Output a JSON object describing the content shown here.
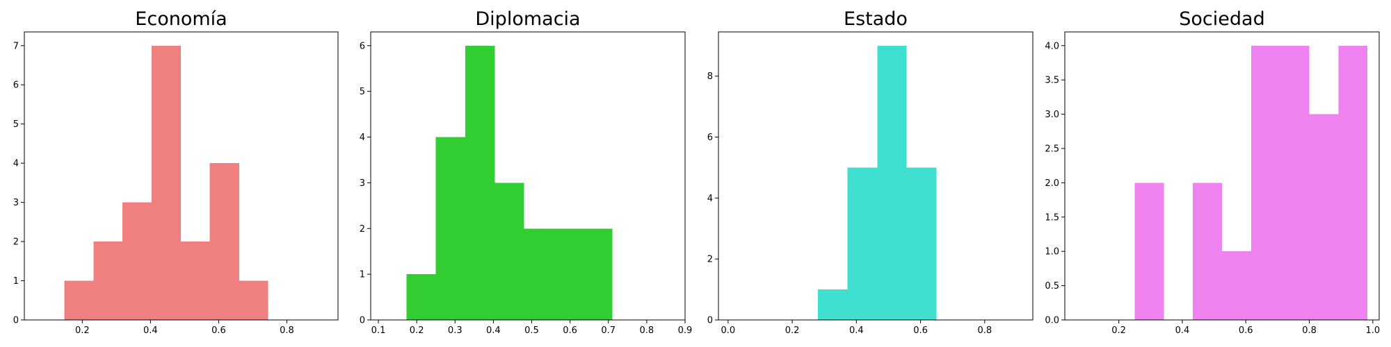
{
  "chart_data": [
    {
      "type": "bar",
      "title": "Economía",
      "color": "#f08080",
      "xlim": [
        0.03,
        0.95
      ],
      "ylim": [
        0,
        7.35
      ],
      "xticks": [
        0.2,
        0.4,
        0.6,
        0.8
      ],
      "xtick_labels": [
        "0.2",
        "0.4",
        "0.6",
        "0.8"
      ],
      "yticks": [
        0,
        1,
        2,
        3,
        4,
        5,
        6,
        7
      ],
      "ytick_labels": [
        "0",
        "1",
        "2",
        "3",
        "4",
        "5",
        "6",
        "7"
      ],
      "bins": [
        [
          0.147,
          0.233
        ],
        [
          0.233,
          0.318
        ],
        [
          0.318,
          0.403
        ],
        [
          0.403,
          0.489
        ],
        [
          0.489,
          0.574
        ],
        [
          0.574,
          0.66
        ],
        [
          0.66,
          0.745
        ]
      ],
      "values": [
        1,
        2,
        3,
        7,
        2,
        4,
        1
      ]
    },
    {
      "type": "bar",
      "title": "Diplomacia",
      "color": "#32cd32",
      "xlim": [
        0.08,
        0.9
      ],
      "ylim": [
        0,
        6.3
      ],
      "xticks": [
        0.1,
        0.2,
        0.3,
        0.4,
        0.5,
        0.6,
        0.7,
        0.8,
        0.9
      ],
      "xtick_labels": [
        "0.1",
        "0.2",
        "0.3",
        "0.4",
        "0.5",
        "0.6",
        "0.7",
        "0.8",
        "0.9"
      ],
      "yticks": [
        0,
        1,
        2,
        3,
        4,
        5,
        6
      ],
      "ytick_labels": [
        "0",
        "1",
        "2",
        "3",
        "4",
        "5",
        "6"
      ],
      "bins": [
        [
          0.173,
          0.25
        ],
        [
          0.25,
          0.327
        ],
        [
          0.327,
          0.404
        ],
        [
          0.404,
          0.48
        ],
        [
          0.48,
          0.557
        ],
        [
          0.557,
          0.634
        ],
        [
          0.634,
          0.71
        ]
      ],
      "values": [
        1,
        4,
        6,
        3,
        2,
        2,
        2
      ]
    },
    {
      "type": "bar",
      "title": "Estado",
      "color": "#40e0d0",
      "xlim": [
        -0.03,
        0.95
      ],
      "ylim": [
        0,
        9.45
      ],
      "xticks": [
        0.0,
        0.2,
        0.4,
        0.6,
        0.8
      ],
      "xtick_labels": [
        "0.0",
        "0.2",
        "0.4",
        "0.6",
        "0.8"
      ],
      "yticks": [
        0,
        2,
        4,
        6,
        8
      ],
      "ytick_labels": [
        "0",
        "2",
        "4",
        "6",
        "8"
      ],
      "bins": [
        [
          0.28,
          0.372
        ],
        [
          0.372,
          0.465
        ],
        [
          0.465,
          0.557
        ],
        [
          0.557,
          0.65
        ]
      ],
      "values": [
        1,
        5,
        9,
        5
      ]
    },
    {
      "type": "bar",
      "title": "Sociedad",
      "color": "#ee82ee",
      "xlim": [
        0.03,
        1.02
      ],
      "ylim": [
        0,
        4.2
      ],
      "xticks": [
        0.2,
        0.4,
        0.6,
        0.8,
        1.0
      ],
      "xtick_labels": [
        "0.2",
        "0.4",
        "0.6",
        "0.8",
        "1.0"
      ],
      "yticks": [
        0,
        0.5,
        1,
        1.5,
        2,
        2.5,
        3,
        3.5,
        4
      ],
      "ytick_labels": [
        "0.0",
        "0.5",
        "1.0",
        "1.5",
        "2.0",
        "2.5",
        "3.0",
        "3.5",
        "4.0"
      ],
      "bins": [
        [
          0.25,
          0.342
        ],
        [
          0.342,
          0.433
        ],
        [
          0.433,
          0.525
        ],
        [
          0.525,
          0.617
        ],
        [
          0.617,
          0.708
        ],
        [
          0.708,
          0.8
        ],
        [
          0.8,
          0.892
        ],
        [
          0.892,
          0.983
        ]
      ],
      "values": [
        2,
        0,
        2,
        1,
        4,
        4,
        3,
        4
      ]
    }
  ]
}
